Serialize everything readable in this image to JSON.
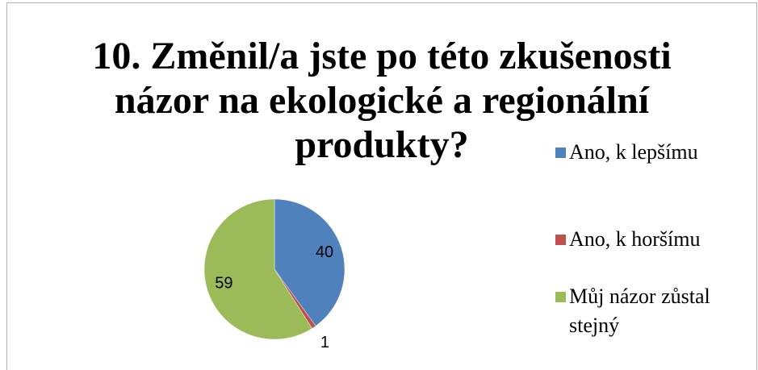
{
  "chart_data": {
    "type": "pie",
    "title": "10. Změnil/a jste po této zkušenosti názor na ekologické a regionální produkty?",
    "categories": [
      "Ano, k lepšímu",
      "Ano, k horšímu",
      "Můj názor zůstal stejný"
    ],
    "values": [
      40,
      1,
      59
    ],
    "colors": [
      "#4f81bd",
      "#c0504d",
      "#9bbb59"
    ],
    "legend": "right"
  }
}
